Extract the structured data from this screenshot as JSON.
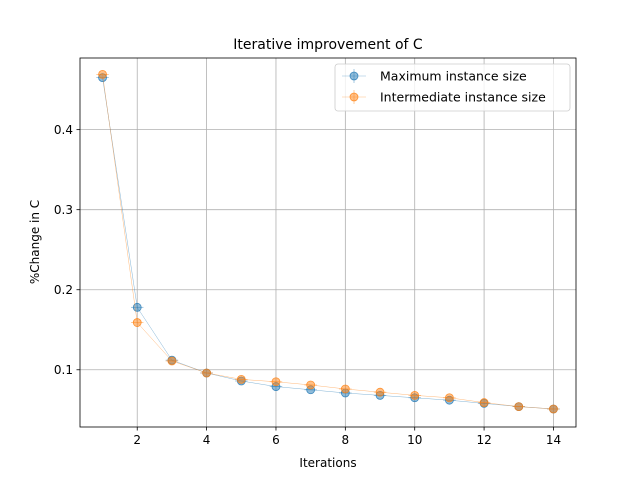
{
  "chart_data": {
    "type": "line",
    "title": "Iterative improvement of C",
    "xlabel": "Iterations",
    "ylabel": "%Change in C",
    "xlim": [
      0.35,
      14.65
    ],
    "ylim": [
      0.0285,
      0.4895
    ],
    "xticks": [
      2,
      4,
      6,
      8,
      10,
      12,
      14
    ],
    "yticks": [
      0.1,
      0.2,
      0.3,
      0.4
    ],
    "xtick_labels": [
      "2",
      "4",
      "6",
      "8",
      "10",
      "12",
      "14"
    ],
    "ytick_labels": [
      "0.1",
      "0.2",
      "0.3",
      "0.4"
    ],
    "grid": true,
    "legend_position": "top-right",
    "error_bars": "horizontal",
    "x": [
      1,
      2,
      3,
      4,
      5,
      6,
      7,
      8,
      9,
      10,
      11,
      12,
      13,
      14
    ],
    "series": [
      {
        "name": "Maximum instance size",
        "color": "#1f77b4",
        "values": [
          0.465,
          0.178,
          0.112,
          0.096,
          0.086,
          0.079,
          0.075,
          0.071,
          0.068,
          0.065,
          0.062,
          0.058,
          0.054,
          0.051
        ],
        "xerr": 0.18
      },
      {
        "name": "Intermediate instance size",
        "color": "#ff7f0e",
        "values": [
          0.469,
          0.159,
          0.111,
          0.096,
          0.088,
          0.085,
          0.081,
          0.076,
          0.072,
          0.068,
          0.065,
          0.059,
          0.054,
          0.051
        ],
        "xerr": 0.18
      }
    ]
  }
}
